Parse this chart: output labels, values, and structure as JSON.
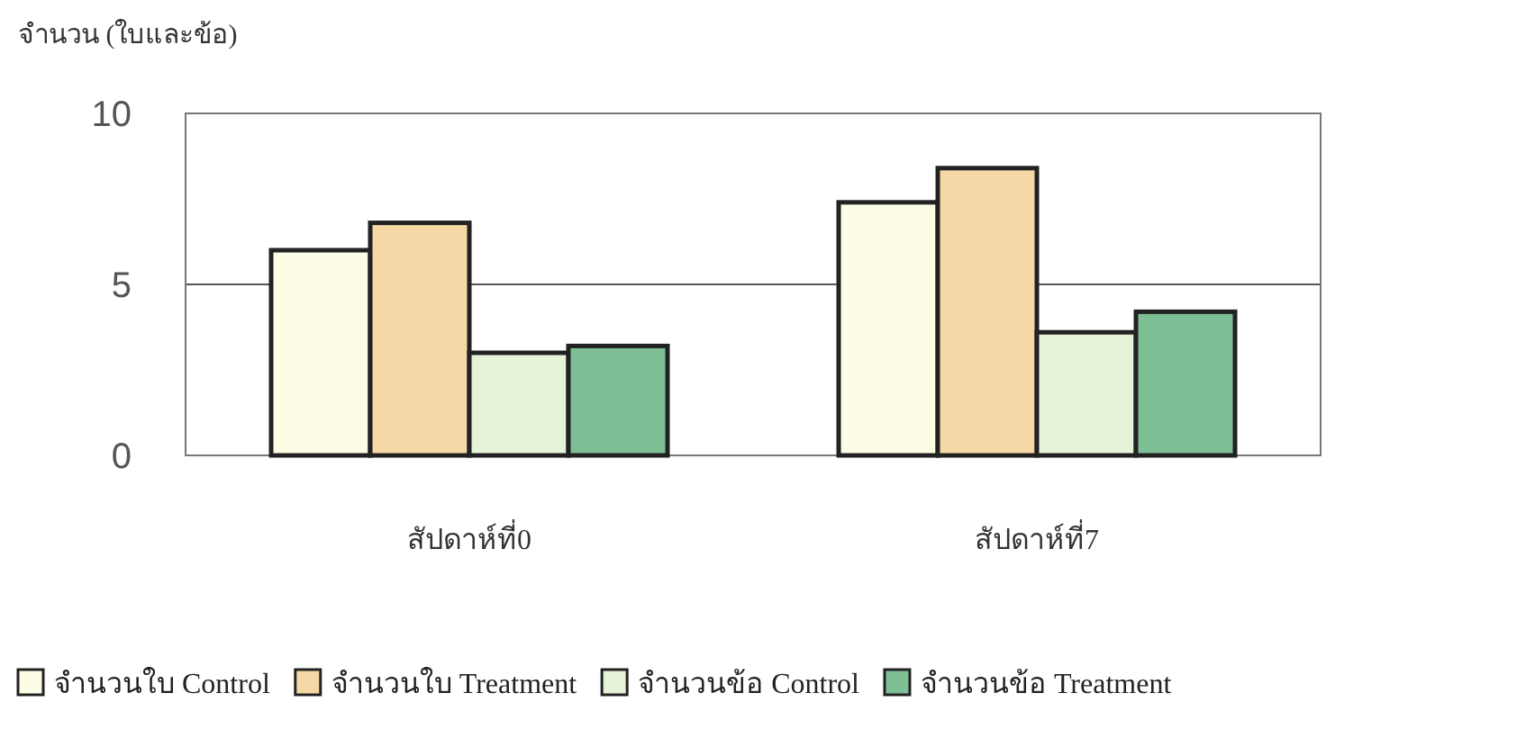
{
  "chart_data": {
    "type": "bar",
    "ylabel": "จำนวน (ใบและข้อ)",
    "categories": [
      "สัปดาห์ที่0",
      "สัปดาห์ที่7"
    ],
    "series": [
      {
        "name": "จำนวนใบ Control",
        "color": "#fdfde6",
        "values": [
          6.0,
          7.4
        ]
      },
      {
        "name": "จำนวนใบ Treatment",
        "color": "#f5d8a6",
        "values": [
          6.8,
          8.4
        ]
      },
      {
        "name": "จำนวนข้อ Control",
        "color": "#e5f3d8",
        "values": [
          3.0,
          3.6
        ]
      },
      {
        "name": "จำนวนข้อ Treatment",
        "color": "#7fbf96",
        "values": [
          3.2,
          4.2
        ]
      }
    ],
    "ylim": [
      0,
      10
    ],
    "yticks": [
      0,
      5,
      10
    ],
    "grid": "y",
    "legend": "bottom"
  }
}
